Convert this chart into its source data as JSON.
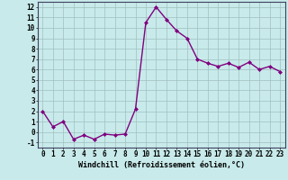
{
  "x": [
    0,
    1,
    2,
    3,
    4,
    5,
    6,
    7,
    8,
    9,
    10,
    11,
    12,
    13,
    14,
    15,
    16,
    17,
    18,
    19,
    20,
    21,
    22,
    23
  ],
  "y": [
    2,
    0.5,
    1.0,
    -0.7,
    -0.3,
    -0.7,
    -0.2,
    -0.3,
    -0.2,
    2.2,
    10.5,
    12.0,
    10.8,
    9.7,
    9.0,
    7.0,
    6.6,
    6.3,
    6.6,
    6.2,
    6.7,
    6.0,
    6.3,
    5.8
  ],
  "line_color": "#800080",
  "marker": "D",
  "marker_size": 2.0,
  "bg_color": "#c8eaea",
  "grid_color": "#a0c0c0",
  "xlabel": "Windchill (Refroidissement éolien,°C)",
  "xlabel_fontsize": 6.0,
  "ylabel_ticks": [
    -1,
    0,
    1,
    2,
    3,
    4,
    5,
    6,
    7,
    8,
    9,
    10,
    11,
    12
  ],
  "ylim": [
    -1.5,
    12.5
  ],
  "xlim": [
    -0.5,
    23.5
  ],
  "tick_fontsize": 5.5,
  "line_width": 1.0
}
